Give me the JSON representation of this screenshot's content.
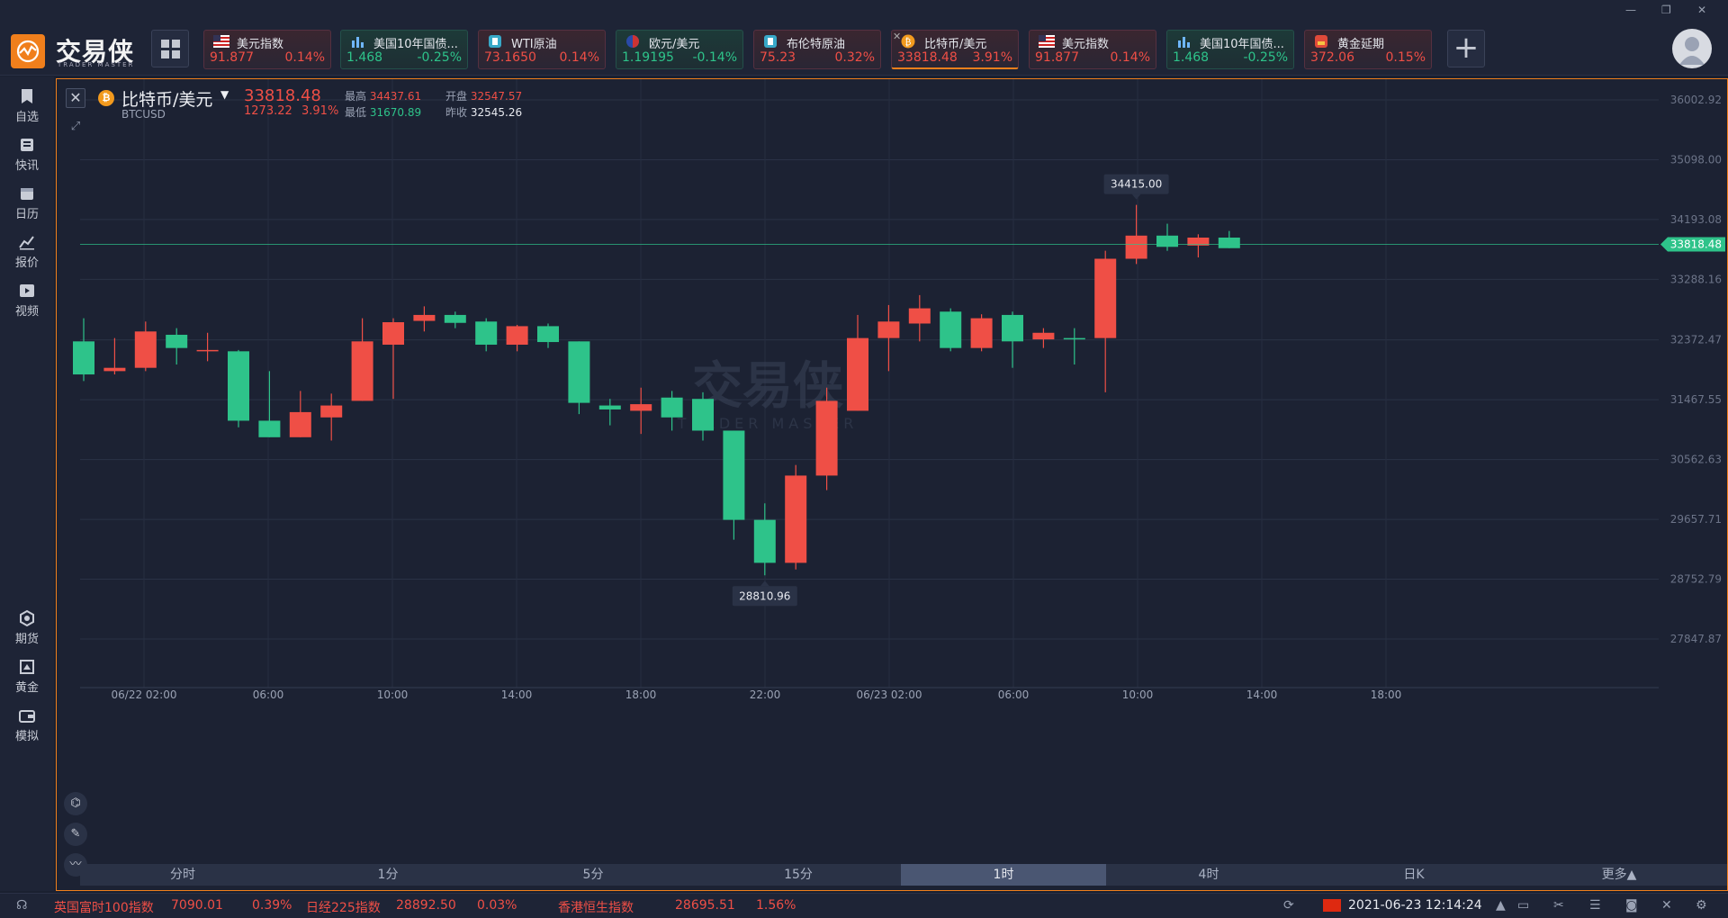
{
  "app": {
    "logo_cn": "交易侠",
    "logo_en": "TRADER MASTER"
  },
  "quotes": [
    {
      "name": "美元指数",
      "price": "91.877",
      "pct": "0.14%",
      "dir": "up",
      "icon": "us-flag-icon"
    },
    {
      "name": "美国10年国债...",
      "price": "1.468",
      "pct": "-0.25%",
      "dir": "down",
      "icon": "bond-chart-icon"
    },
    {
      "name": "WTI原油",
      "price": "73.1650",
      "pct": "0.14%",
      "dir": "up",
      "icon": "oil-icon"
    },
    {
      "name": "欧元/美元",
      "price": "1.19195",
      "pct": "-0.14%",
      "dir": "down",
      "icon": "eu-us-flag-icon"
    },
    {
      "name": "布伦特原油",
      "price": "75.23",
      "pct": "0.32%",
      "dir": "up",
      "icon": "oil-icon"
    },
    {
      "name": "比特币/美元",
      "price": "33818.48",
      "pct": "3.91%",
      "dir": "up",
      "icon": "bitcoin-icon",
      "active": true
    },
    {
      "name": "美元指数",
      "price": "91.877",
      "pct": "0.14%",
      "dir": "up",
      "icon": "us-flag-icon"
    },
    {
      "name": "美国10年国债...",
      "price": "1.468",
      "pct": "-0.25%",
      "dir": "down",
      "icon": "bond-chart-icon"
    },
    {
      "name": "黄金延期",
      "price": "372.06",
      "pct": "0.15%",
      "dir": "up",
      "icon": "gold-icon"
    }
  ],
  "sidebar": {
    "top": [
      {
        "label": "自选",
        "icon": "bookmark-icon"
      },
      {
        "label": "快讯",
        "icon": "news-icon"
      },
      {
        "label": "日历",
        "icon": "calendar-icon"
      },
      {
        "label": "报价",
        "icon": "quote-chart-icon"
      },
      {
        "label": "视频",
        "icon": "video-icon"
      }
    ],
    "bottom": [
      {
        "label": "期货",
        "icon": "futures-icon"
      },
      {
        "label": "黄金",
        "icon": "gold-bar-icon"
      },
      {
        "label": "模拟",
        "icon": "wallet-icon"
      }
    ]
  },
  "symbol": {
    "name": "比特币/美元",
    "code": "BTCUSD",
    "last": "33818.48",
    "change": "1273.22",
    "pct": "3.91%",
    "high_label": "最高",
    "high": "34437.61",
    "open_label": "开盘",
    "open": "32547.57",
    "low_label": "最低",
    "low": "31670.89",
    "prev_label": "昨收",
    "prev": "32545.26"
  },
  "periods": [
    "分时",
    "1分",
    "5分",
    "15分",
    "1时",
    "4时",
    "日K",
    "更多▲"
  ],
  "selected_period": "1时",
  "chart_data": {
    "type": "candlestick",
    "y_ticks": [
      "36002.92",
      "35098.00",
      "34193.08",
      "33288.16",
      "32372.47",
      "31467.55",
      "30562.63",
      "29657.71",
      "28752.79",
      "27847.87"
    ],
    "x_ticks": [
      "06/22 02:00",
      "06:00",
      "10:00",
      "14:00",
      "18:00",
      "22:00",
      "06/23 02:00",
      "06:00",
      "10:00",
      "14:00",
      "18:00"
    ],
    "current_price": "33818.48",
    "high_marker": "34415.00",
    "low_marker": "28810.96",
    "watermark_cn": "交易侠",
    "watermark_en": "TRADER MASTER",
    "candles": [
      {
        "o": 32350,
        "c": 31850,
        "h": 32700,
        "l": 31750
      },
      {
        "o": 31900,
        "c": 31950,
        "h": 32400,
        "l": 31850
      },
      {
        "o": 31950,
        "c": 32500,
        "h": 32650,
        "l": 31900
      },
      {
        "o": 32450,
        "c": 32250,
        "h": 32550,
        "l": 32000
      },
      {
        "o": 32220,
        "c": 32220,
        "h": 32480,
        "l": 32050
      },
      {
        "o": 32200,
        "c": 31150,
        "h": 32220,
        "l": 31050
      },
      {
        "o": 31150,
        "c": 30900,
        "h": 31900,
        "l": 30900
      },
      {
        "o": 30900,
        "c": 31280,
        "h": 31600,
        "l": 30900
      },
      {
        "o": 31200,
        "c": 31380,
        "h": 31560,
        "l": 30850
      },
      {
        "o": 31450,
        "c": 32350,
        "h": 32700,
        "l": 31450
      },
      {
        "o": 32300,
        "c": 32640,
        "h": 32700,
        "l": 31480
      },
      {
        "o": 32660,
        "c": 32750,
        "h": 32880,
        "l": 32500
      },
      {
        "o": 32750,
        "c": 32630,
        "h": 32800,
        "l": 32550
      },
      {
        "o": 32650,
        "c": 32300,
        "h": 32700,
        "l": 32200
      },
      {
        "o": 32300,
        "c": 32580,
        "h": 32600,
        "l": 32200
      },
      {
        "o": 32580,
        "c": 32340,
        "h": 32620,
        "l": 32250
      },
      {
        "o": 32350,
        "c": 31420,
        "h": 32350,
        "l": 31250
      },
      {
        "o": 31380,
        "c": 31320,
        "h": 31480,
        "l": 31080
      },
      {
        "o": 31300,
        "c": 31400,
        "h": 31650,
        "l": 30950
      },
      {
        "o": 31500,
        "c": 31200,
        "h": 31600,
        "l": 31000
      },
      {
        "o": 31480,
        "c": 31000,
        "h": 31580,
        "l": 30850
      },
      {
        "o": 31000,
        "c": 29650,
        "h": 31000,
        "l": 29350
      },
      {
        "o": 29650,
        "c": 29000,
        "h": 29900,
        "l": 28810.96
      },
      {
        "o": 29000,
        "c": 30320,
        "h": 30480,
        "l": 28900
      },
      {
        "o": 30320,
        "c": 31450,
        "h": 31650,
        "l": 30100
      },
      {
        "o": 31300,
        "c": 32400,
        "h": 32750,
        "l": 31300
      },
      {
        "o": 32400,
        "c": 32650,
        "h": 32900,
        "l": 31900
      },
      {
        "o": 32620,
        "c": 32850,
        "h": 33050,
        "l": 32350
      },
      {
        "o": 32800,
        "c": 32250,
        "h": 32850,
        "l": 32200
      },
      {
        "o": 32250,
        "c": 32700,
        "h": 32760,
        "l": 32200
      },
      {
        "o": 32750,
        "c": 32350,
        "h": 32800,
        "l": 31950
      },
      {
        "o": 32380,
        "c": 32480,
        "h": 32550,
        "l": 32250
      },
      {
        "o": 32400,
        "c": 32380,
        "h": 32550,
        "l": 32000
      },
      {
        "o": 32400,
        "c": 33600,
        "h": 33720,
        "l": 31580
      },
      {
        "o": 33600,
        "c": 33950,
        "h": 34415,
        "l": 33520
      },
      {
        "o": 33950,
        "c": 33780,
        "h": 34130,
        "l": 33720
      },
      {
        "o": 33800,
        "c": 33920,
        "h": 33970,
        "l": 33620
      },
      {
        "o": 33920,
        "c": 33760,
        "h": 34020,
        "l": 33760
      }
    ]
  },
  "statusbar": {
    "items": [
      {
        "name": "英国富时100指数",
        "value": "7090.01",
        "pct": "0.39%"
      },
      {
        "name": "日经225指数",
        "value": "28892.50",
        "pct": "0.03%"
      },
      {
        "name": "香港恒生指数",
        "value": "28695.51",
        "pct": "1.56%"
      }
    ],
    "datetime": "2021-06-23 12:14:24"
  }
}
